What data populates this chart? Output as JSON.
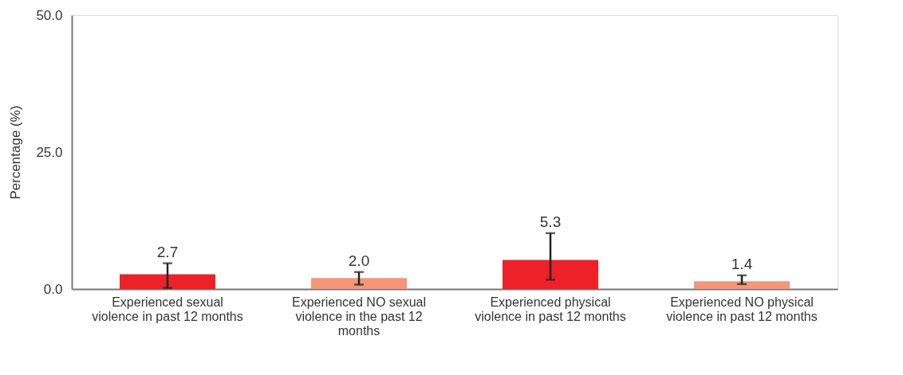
{
  "chart_data": {
    "type": "bar",
    "ylabel": "Percentage (%)",
    "categories": [
      "Experienced sexual violence in past 12 months",
      "Experienced NO sexual violence in the past 12 months",
      "Experienced physical violence in past 12 months",
      "Experienced NO physical violence in past 12 months"
    ],
    "values": [
      2.7,
      2.0,
      5.3,
      1.4
    ],
    "colors": [
      "#ee2028",
      "#f4967a",
      "#ee2028",
      "#f4967a"
    ],
    "errors": [
      [
        0.2,
        4.7
      ],
      [
        0.8,
        3.1
      ],
      [
        1.7,
        10.2
      ],
      [
        0.9,
        2.5
      ]
    ],
    "ylim": [
      0,
      50
    ],
    "yticks": [
      {
        "value": 0,
        "label": "0.0"
      },
      {
        "value": 25,
        "label": "25.0"
      },
      {
        "value": 50,
        "label": "50.0"
      }
    ],
    "value_labels": [
      "2.7",
      "2.0",
      "5.3",
      "1.4"
    ],
    "grid": false
  }
}
